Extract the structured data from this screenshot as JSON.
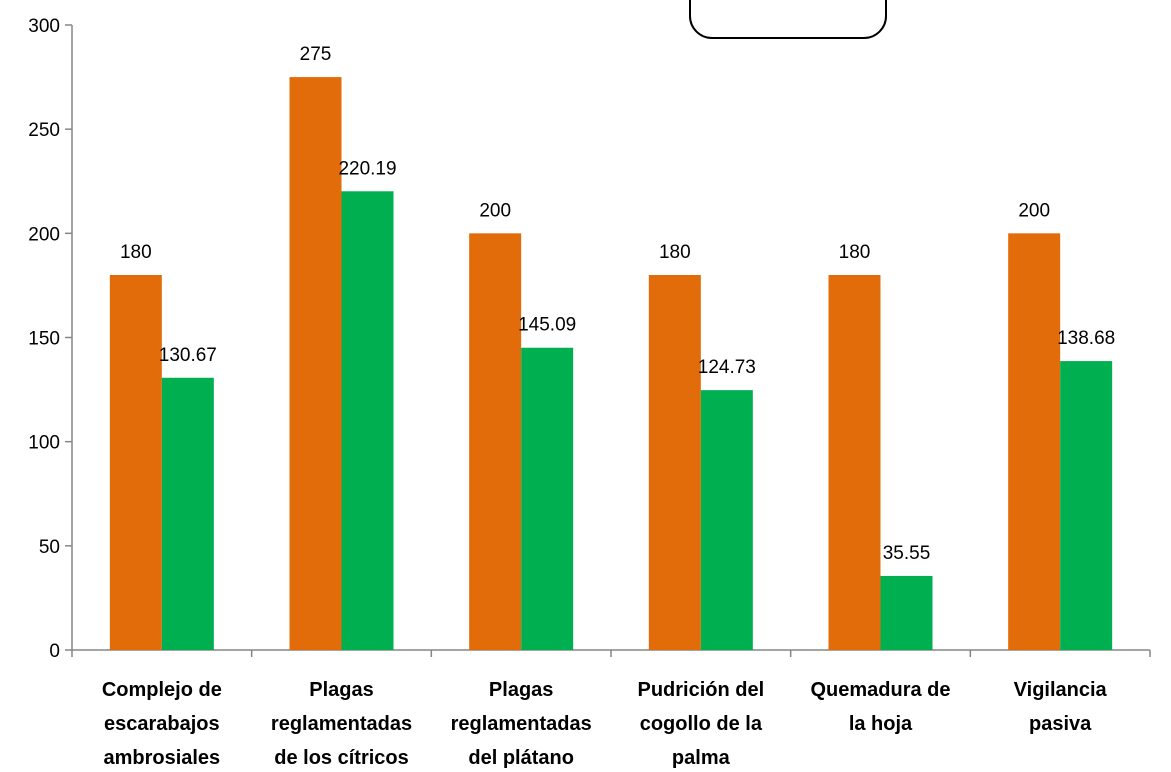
{
  "chart_data": {
    "type": "bar",
    "categories": [
      [
        "Complejo de",
        "escarabajos",
        "ambrosiales"
      ],
      [
        "Plagas",
        "reglamentadas",
        "de los cítricos"
      ],
      [
        "Plagas",
        "reglamentadas",
        "del plátano"
      ],
      [
        "Pudrición del",
        "cogollo de la",
        "palma"
      ],
      [
        "Quemadura de",
        "la hoja"
      ],
      [
        "Vigilancia",
        "pasiva"
      ]
    ],
    "series": [
      {
        "values": [
          180,
          275,
          200,
          180,
          180,
          200
        ],
        "labels": [
          "180",
          "275",
          "200",
          "180",
          "180",
          "200"
        ],
        "color": "#e36c0a"
      },
      {
        "values": [
          130.67,
          220.19,
          145.09,
          124.73,
          35.55,
          138.68
        ],
        "labels": [
          "130.67",
          "220.19",
          "145.09",
          "124.73",
          "35.55",
          "138.68"
        ],
        "color": "#00b050"
      }
    ],
    "yticks": [
      "0",
      "50",
      "100",
      "150",
      "200",
      "250",
      "300"
    ],
    "ylim": [
      0,
      300
    ],
    "grid": false,
    "legend": "none"
  }
}
